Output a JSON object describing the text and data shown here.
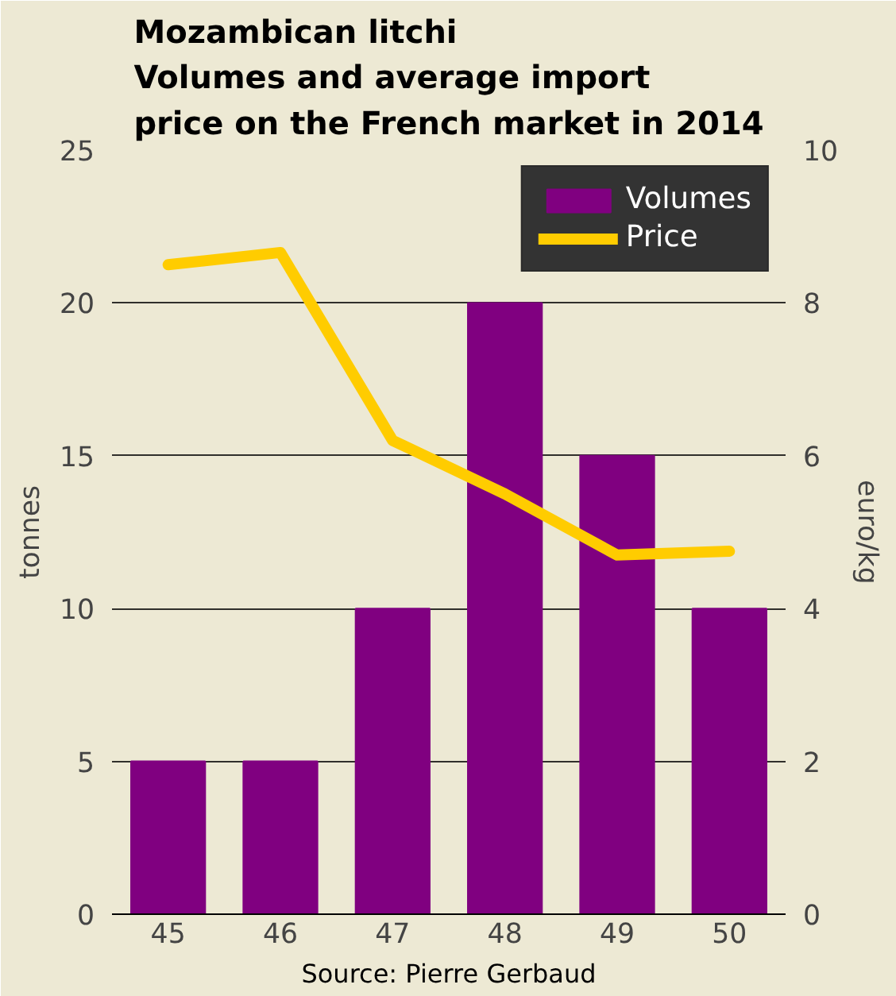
{
  "chart_data": {
    "type": "bar",
    "title": "Mozambican litchi\nVolumes and average import\nprice on the French market in 2014",
    "ylabel": "tonnes",
    "y2label": "euro/kg",
    "categories": [
      "45",
      "46",
      "47",
      "48",
      "49",
      "50"
    ],
    "series": [
      {
        "name": "Volumes",
        "color": "#800080",
        "values": [
          5,
          5,
          10,
          20,
          15,
          10
        ]
      },
      {
        "name": "Price",
        "type": "line",
        "axis": "y2",
        "color": "#ffcc00",
        "values": [
          8.5,
          8.66,
          6.2,
          5.5,
          4.7,
          4.75
        ]
      }
    ],
    "ylim": [
      0,
      25
    ],
    "yticks": [
      0,
      5,
      10,
      15,
      20,
      25
    ],
    "y2lim": [
      0,
      10
    ],
    "y2ticks": [
      0,
      2,
      4,
      6,
      8,
      10
    ],
    "grid": "y",
    "legend": "top right",
    "line_style": "solid",
    "annotations": [
      "Source: Pierre Gerbaud"
    ]
  }
}
